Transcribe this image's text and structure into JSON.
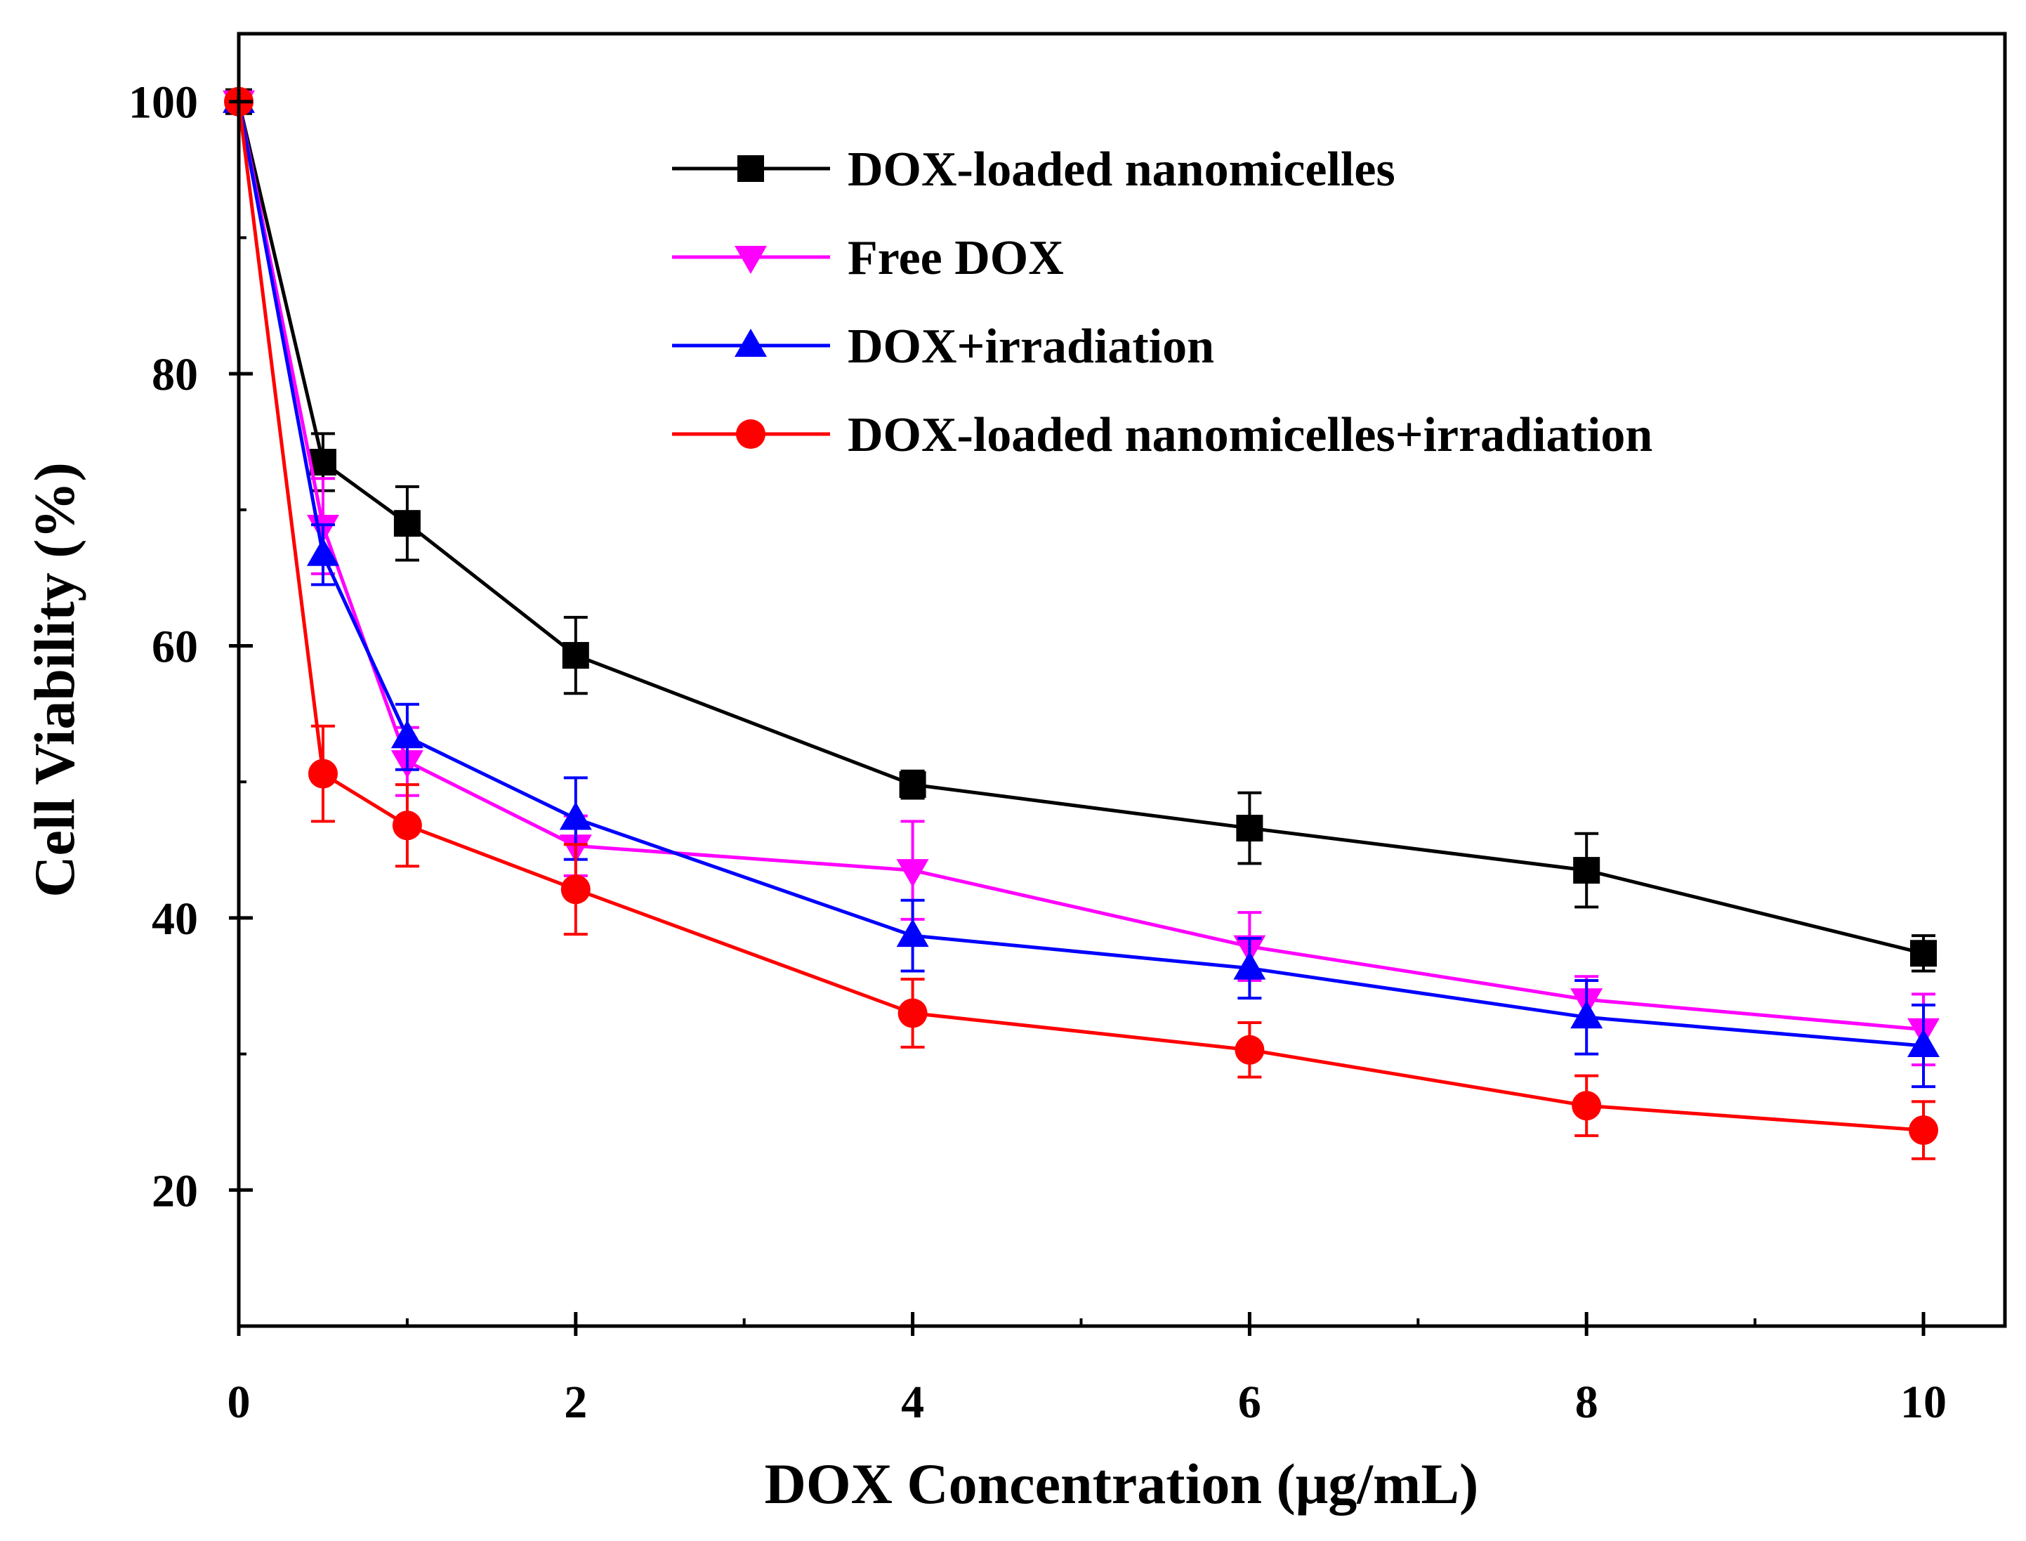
{
  "chart_data": {
    "type": "line",
    "xlabel": "DOX Concentration (μg/mL)",
    "ylabel": "Cell Viability (%)",
    "xlim": [
      0,
      10.5
    ],
    "ylim": [
      10,
      105
    ],
    "x_ticks": [
      0,
      2,
      4,
      6,
      8,
      10
    ],
    "x_tick_labels": [
      "0",
      "2",
      "4",
      "6",
      "8",
      "10"
    ],
    "x_minor_ticks": [
      1,
      3,
      5,
      7,
      9
    ],
    "y_ticks": [
      20,
      40,
      60,
      80,
      100
    ],
    "y_tick_labels": [
      "20",
      "40",
      "60",
      "80",
      "100"
    ],
    "y_minor_ticks": [
      30,
      50,
      70,
      90
    ],
    "legend_position": "top-right",
    "x": [
      0,
      0.5,
      1,
      2,
      4,
      6,
      8,
      10
    ],
    "series": [
      {
        "name": "DOX-loaded nanomicelles",
        "color": "#000000",
        "marker": "square",
        "values": [
          100,
          73.5,
          69,
          59.3,
          49.8,
          46.6,
          43.5,
          37.4
        ],
        "errors": [
          0,
          2.1,
          2.7,
          2.8,
          1.0,
          2.6,
          2.7,
          1.3
        ]
      },
      {
        "name": "Free DOX",
        "color": "#ff00ff",
        "marker": "triangle-down",
        "values": [
          100,
          68.8,
          51.5,
          45.3,
          43.5,
          37.9,
          34.0,
          31.8
        ],
        "errors": [
          0,
          3.5,
          2.5,
          2.2,
          3.6,
          2.5,
          1.7,
          2.6
        ]
      },
      {
        "name": "DOX+irradiation",
        "color": "#0000ff",
        "marker": "triangle-up",
        "values": [
          100,
          66.7,
          53.3,
          47.3,
          38.7,
          36.3,
          32.7,
          30.6
        ],
        "errors": [
          0,
          2.2,
          2.4,
          3.0,
          2.6,
          2.2,
          2.7,
          3.0
        ]
      },
      {
        "name": "DOX-loaded nanomicelles+irradiation",
        "color": "#ff0000",
        "marker": "circle",
        "values": [
          100,
          50.6,
          46.8,
          42.1,
          33.0,
          30.3,
          26.2,
          24.4
        ],
        "errors": [
          0,
          3.5,
          3.0,
          3.3,
          2.5,
          2.0,
          2.2,
          2.1
        ]
      }
    ]
  }
}
